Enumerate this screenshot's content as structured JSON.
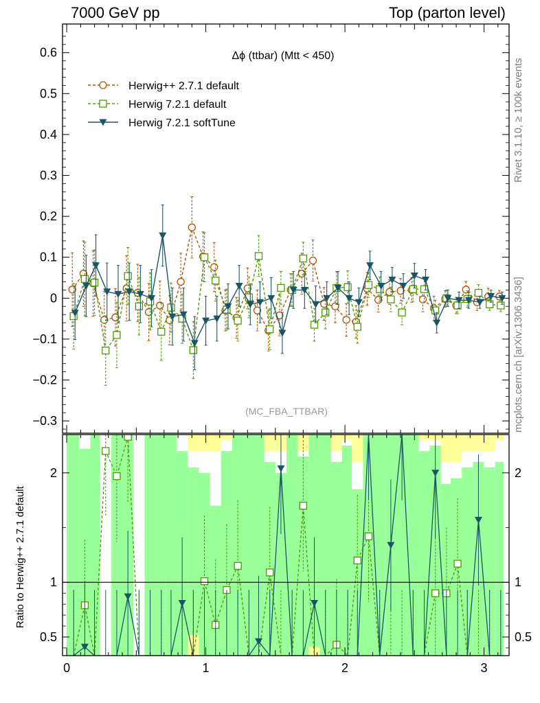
{
  "header": {
    "left": "7000 GeV pp",
    "right": "Top (parton level)"
  },
  "side_text": {
    "rivet": "Rivet 3.1.10, ≥ 100k events",
    "mcplots": "mcplots.cern.ch [arXiv:1306.3436]"
  },
  "colors": {
    "herwigpp": "#b35000",
    "herwig721": "#4c9b00",
    "softtune": "#1a5566",
    "band_green": "#99ff99",
    "band_yellow": "#ffff99",
    "watermark": "#999999"
  },
  "icons": {
    "herwigpp": "open-circle-marker",
    "herwig721": "open-square-marker",
    "softtune": "filled-down-triangle-marker"
  },
  "chart_data": [
    {
      "type": "line",
      "title": "Δϕ (ttbar) (Mtt < 450)",
      "watermark": "(MC_FBA_TTBAR)",
      "xlabel": "",
      "ylabel": "",
      "xlim": [
        -0.03,
        3.18
      ],
      "ylim": [
        -0.33,
        0.67
      ],
      "y_ticks": [
        -0.3,
        -0.2,
        -0.1,
        0,
        0.1,
        0.2,
        0.3,
        0.4,
        0.5,
        0.6
      ],
      "y_tick_labels": [
        "−0.3",
        "−0.2",
        "−0.1",
        "0",
        "0.1",
        "0.2",
        "0.3",
        "0.4",
        "0.5",
        "0.6"
      ],
      "legend_position": "top-left",
      "grid": false,
      "x": [
        0.05,
        0.13,
        0.2,
        0.28,
        0.36,
        0.44,
        0.52,
        0.6,
        0.68,
        0.75,
        0.83,
        0.91,
        0.99,
        1.07,
        1.15,
        1.23,
        1.31,
        1.38,
        1.46,
        1.54,
        1.62,
        1.7,
        1.78,
        1.86,
        1.94,
        2.02,
        2.09,
        2.17,
        2.25,
        2.33,
        2.41,
        2.49,
        2.57,
        2.65,
        2.73,
        2.81,
        2.88,
        2.96,
        3.04,
        3.12
      ],
      "series": [
        {
          "name": "Herwig++ 2.7.1 default",
          "marker": "open-circle",
          "line": "dashed",
          "y": [
            0.021,
            0.06,
            0.036,
            -0.053,
            -0.047,
            0.024,
            0.013,
            -0.034,
            -0.018,
            -0.054,
            0.04,
            0.173,
            0.102,
            0.076,
            -0.03,
            -0.048,
            0.024,
            -0.03,
            -0.079,
            -0.042,
            0.02,
            0.06,
            0.092,
            -0.014,
            -0.02,
            -0.053,
            -0.058,
            0.023,
            -0.004,
            0.015,
            0.018,
            0.02,
            -0.003,
            -0.025,
            -0.002,
            -0.018,
            0.021,
            -0.01,
            0.004,
            0.004
          ],
          "yerr": [
            0.09,
            0.08,
            0.08,
            0.07,
            0.07,
            0.08,
            0.07,
            0.07,
            0.06,
            0.06,
            0.07,
            0.075,
            0.06,
            0.06,
            0.05,
            0.05,
            0.05,
            0.05,
            0.05,
            0.05,
            0.04,
            0.05,
            0.05,
            0.04,
            0.04,
            0.04,
            0.04,
            0.04,
            0.03,
            0.03,
            0.03,
            0.03,
            0.03,
            0.03,
            0.02,
            0.02,
            0.02,
            0.02,
            0.02,
            0.015
          ]
        },
        {
          "name": "Herwig 7.2.1 default",
          "marker": "open-square",
          "line": "dashed",
          "y": [
            -0.044,
            0.047,
            0.038,
            -0.128,
            -0.09,
            0.054,
            -0.02,
            -0.008,
            -0.082,
            -0.023,
            -0.05,
            -0.127,
            0.1,
            0.043,
            -0.028,
            -0.055,
            0.002,
            0.103,
            -0.076,
            0.025,
            0.02,
            0.097,
            -0.065,
            -0.035,
            0.025,
            0.027,
            -0.07,
            0.032,
            0.022,
            -0.003,
            -0.035,
            0.022,
            0.022,
            -0.03,
            0.0,
            -0.018,
            -0.002,
            0.013,
            -0.015,
            -0.018
          ],
          "yerr": [
            0.08,
            0.09,
            0.08,
            0.085,
            0.08,
            0.07,
            0.07,
            0.07,
            0.07,
            0.06,
            0.06,
            0.07,
            0.06,
            0.05,
            0.05,
            0.05,
            0.05,
            0.05,
            0.05,
            0.04,
            0.04,
            0.04,
            0.04,
            0.04,
            0.04,
            0.04,
            0.04,
            0.03,
            0.03,
            0.03,
            0.03,
            0.03,
            0.03,
            0.025,
            0.02,
            0.02,
            0.02,
            0.02,
            0.015,
            0.015
          ]
        },
        {
          "name": "Herwig 7.2.1 softTune",
          "marker": "filled-down-triangle",
          "line": "solid",
          "y": [
            -0.036,
            0.03,
            0.08,
            0.016,
            0.01,
            0.016,
            0.01,
            0.0,
            0.153,
            -0.045,
            -0.04,
            -0.11,
            -0.055,
            -0.05,
            -0.02,
            0.03,
            -0.015,
            -0.01,
            0.0,
            -0.085,
            0.02,
            0.02,
            -0.015,
            0.0,
            0.025,
            0.0,
            -0.01,
            0.08,
            0.03,
            0.045,
            0.03,
            0.055,
            0.045,
            -0.06,
            0.0,
            -0.005,
            -0.005,
            -0.01,
            0.005,
            0.0
          ],
          "yerr": [
            0.065,
            0.075,
            0.075,
            0.07,
            0.07,
            0.07,
            0.07,
            0.07,
            0.075,
            0.07,
            0.065,
            0.065,
            0.06,
            0.055,
            0.055,
            0.05,
            0.05,
            0.05,
            0.05,
            0.05,
            0.045,
            0.045,
            0.045,
            0.04,
            0.04,
            0.04,
            0.035,
            0.035,
            0.035,
            0.03,
            0.03,
            0.03,
            0.025,
            0.025,
            0.02,
            0.02,
            0.02,
            0.015,
            0.015,
            0.015
          ]
        }
      ]
    },
    {
      "type": "line",
      "title": "",
      "xlabel": "",
      "ylabel": "Ratio to Herwig++ 2.7.1 default",
      "xlim": [
        -0.03,
        3.18
      ],
      "ylim": [
        0.33,
        2.35
      ],
      "y_ticks": [
        0.5,
        1,
        2
      ],
      "y_tick_labels": [
        "0.5",
        "1",
        "2"
      ],
      "x_ticks": [
        0,
        1,
        2,
        3
      ],
      "x_tick_labels": [
        "0",
        "1",
        "2",
        "3"
      ],
      "reference_line": 1,
      "grid": false,
      "band_columns": [
        {
          "x0": 0.0,
          "x1": 0.09,
          "yellow": [
            2.35,
            2.35
          ],
          "green": [
            0.33,
            2.35
          ]
        },
        {
          "x0": 0.09,
          "x1": 0.17,
          "yellow": [
            2.35,
            2.35
          ],
          "green": [
            0.33,
            2.22
          ]
        },
        {
          "x0": 0.17,
          "x1": 0.24,
          "yellow": [
            2.35,
            2.35
          ],
          "green": [
            0.33,
            2.35
          ]
        },
        {
          "x0": 0.24,
          "x1": 0.32,
          "yellow": [
            0.33,
            0.33
          ],
          "green": [
            0.33,
            0.33
          ]
        },
        {
          "x0": 0.32,
          "x1": 0.4,
          "yellow": [
            2.35,
            2.35
          ],
          "green": [
            0.33,
            2.35
          ]
        },
        {
          "x0": 0.4,
          "x1": 0.48,
          "yellow": [
            2.35,
            2.35
          ],
          "green": [
            0.33,
            2.35
          ]
        },
        {
          "x0": 0.48,
          "x1": 0.56,
          "yellow": [
            0.33,
            0.33
          ],
          "green": [
            0.33,
            0.33
          ]
        },
        {
          "x0": 0.56,
          "x1": 0.64,
          "yellow": [
            2.35,
            2.35
          ],
          "green": [
            0.33,
            2.35
          ]
        },
        {
          "x0": 0.64,
          "x1": 0.71,
          "yellow": [
            2.35,
            2.35
          ],
          "green": [
            0.33,
            2.35
          ]
        },
        {
          "x0": 0.71,
          "x1": 0.79,
          "yellow": [
            2.35,
            2.35
          ],
          "green": [
            0.33,
            2.35
          ]
        },
        {
          "x0": 0.79,
          "x1": 0.87,
          "yellow": [
            2.35,
            2.35
          ],
          "green": [
            0.33,
            2.2
          ]
        },
        {
          "x0": 0.87,
          "x1": 0.95,
          "yellow": [
            2.2,
            2.35
          ],
          "green": [
            0.33,
            2.05
          ]
        },
        {
          "x0": 0.95,
          "x1": 1.03,
          "yellow": [
            2.2,
            2.35
          ],
          "green": [
            0.33,
            2.0
          ]
        },
        {
          "x0": 1.03,
          "x1": 1.11,
          "yellow": [
            2.2,
            2.35
          ],
          "green": [
            0.33,
            1.7
          ]
        },
        {
          "x0": 1.11,
          "x1": 1.19,
          "yellow": [
            2.3,
            2.35
          ],
          "green": [
            0.33,
            2.2
          ]
        },
        {
          "x0": 1.19,
          "x1": 1.27,
          "yellow": [
            2.35,
            2.35
          ],
          "green": [
            0.33,
            2.35
          ]
        },
        {
          "x0": 1.27,
          "x1": 1.34,
          "yellow": [
            2.35,
            2.35
          ],
          "green": [
            0.33,
            2.35
          ]
        },
        {
          "x0": 1.34,
          "x1": 1.42,
          "yellow": [
            2.35,
            2.35
          ],
          "green": [
            0.33,
            2.35
          ]
        },
        {
          "x0": 1.42,
          "x1": 1.5,
          "yellow": [
            2.2,
            2.35
          ],
          "green": [
            0.33,
            2.1
          ]
        },
        {
          "x0": 1.5,
          "x1": 1.58,
          "yellow": [
            2.2,
            2.35
          ],
          "green": [
            0.33,
            2.0
          ]
        },
        {
          "x0": 1.58,
          "x1": 1.66,
          "yellow": [
            2.35,
            2.35
          ],
          "green": [
            0.33,
            2.35
          ]
        },
        {
          "x0": 1.66,
          "x1": 1.74,
          "yellow": [
            2.2,
            2.35
          ],
          "green": [
            0.33,
            2.15
          ]
        },
        {
          "x0": 1.74,
          "x1": 1.82,
          "yellow": [
            2.35,
            2.35
          ],
          "green": [
            0.33,
            2.35
          ]
        },
        {
          "x0": 1.82,
          "x1": 1.9,
          "yellow": [
            2.35,
            2.35
          ],
          "green": [
            0.33,
            2.35
          ]
        },
        {
          "x0": 1.9,
          "x1": 1.98,
          "yellow": [
            2.2,
            2.35
          ],
          "green": [
            0.33,
            2.1
          ]
        },
        {
          "x0": 1.98,
          "x1": 2.05,
          "yellow": [
            2.3,
            2.35
          ],
          "green": [
            0.33,
            2.25
          ]
        },
        {
          "x0": 2.05,
          "x1": 2.13,
          "yellow": [
            2.1,
            2.35
          ],
          "green": [
            0.33,
            1.85
          ]
        },
        {
          "x0": 2.13,
          "x1": 2.21,
          "yellow": [
            2.35,
            2.35
          ],
          "green": [
            0.33,
            2.35
          ]
        },
        {
          "x0": 2.21,
          "x1": 2.29,
          "yellow": [
            2.35,
            2.35
          ],
          "green": [
            0.33,
            2.35
          ]
        },
        {
          "x0": 2.29,
          "x1": 2.37,
          "yellow": [
            2.35,
            2.35
          ],
          "green": [
            0.33,
            2.35
          ]
        },
        {
          "x0": 2.37,
          "x1": 2.45,
          "yellow": [
            2.35,
            2.35
          ],
          "green": [
            0.33,
            2.35
          ]
        },
        {
          "x0": 2.45,
          "x1": 2.53,
          "yellow": [
            2.35,
            2.35
          ],
          "green": [
            0.33,
            2.35
          ]
        },
        {
          "x0": 2.53,
          "x1": 2.61,
          "yellow": [
            2.3,
            2.35
          ],
          "green": [
            0.33,
            2.2
          ]
        },
        {
          "x0": 2.61,
          "x1": 2.69,
          "yellow": [
            2.3,
            2.35
          ],
          "green": [
            0.33,
            2.25
          ]
        },
        {
          "x0": 2.69,
          "x1": 2.76,
          "yellow": [
            2.1,
            2.35
          ],
          "green": [
            0.33,
            1.9
          ]
        },
        {
          "x0": 2.76,
          "x1": 2.84,
          "yellow": [
            2.1,
            2.35
          ],
          "green": [
            0.33,
            1.95
          ]
        },
        {
          "x0": 2.84,
          "x1": 2.92,
          "yellow": [
            2.2,
            2.35
          ],
          "green": [
            0.33,
            2.05
          ]
        },
        {
          "x0": 2.92,
          "x1": 3.0,
          "yellow": [
            2.2,
            2.35
          ],
          "green": [
            0.33,
            2.1
          ]
        },
        {
          "x0": 3.0,
          "x1": 3.08,
          "yellow": [
            2.2,
            2.35
          ],
          "green": [
            0.33,
            2.05
          ]
        },
        {
          "x0": 3.08,
          "x1": 3.14,
          "yellow": [
            2.3,
            2.35
          ],
          "green": [
            0.33,
            2.1
          ]
        }
      ],
      "band_extra_yellow": [
        {
          "x0": 0.87,
          "x1": 0.95,
          "y0": 0.33,
          "y1": 0.52
        },
        {
          "x0": 1.74,
          "x1": 1.82,
          "y0": 0.33,
          "y1": 0.41
        }
      ],
      "series": [
        {
          "name": "Herwig 7.2.1 default",
          "line": "dashed",
          "marker": "open-square",
          "y": [
            0.33,
            0.79,
            0.33,
            2.2,
            1.97,
            2.33,
            0.33,
            0.33,
            0.33,
            0.33,
            0.33,
            0.33,
            1.01,
            0.61,
            0.93,
            1.15,
            0.33,
            0.33,
            1.09,
            0.33,
            0.33,
            1.7,
            0.33,
            0.33,
            0.43,
            0.33,
            1.2,
            1.42,
            0.33,
            0.33,
            0.33,
            0.33,
            0.33,
            0.9,
            0.9,
            1.17,
            0.33,
            0.33,
            0.33,
            0.33
          ]
        },
        {
          "name": "Herwig 7.2.1 softTune",
          "line": "solid",
          "marker": "filled-down-triangle",
          "y": [
            0.33,
            0.41,
            0.33,
            0.33,
            0.33,
            0.87,
            0.33,
            0.33,
            0.33,
            0.33,
            0.81,
            0.33,
            0.33,
            0.33,
            0.33,
            0.33,
            0.33,
            0.46,
            0.33,
            2.04,
            0.33,
            0.33,
            0.81,
            0.33,
            0.33,
            0.33,
            0.33,
            2.35,
            0.33,
            1.34,
            2.35,
            0.33,
            0.33,
            2.0,
            0.33,
            0.33,
            0.33,
            1.57,
            0.33,
            0.33
          ]
        }
      ]
    }
  ]
}
